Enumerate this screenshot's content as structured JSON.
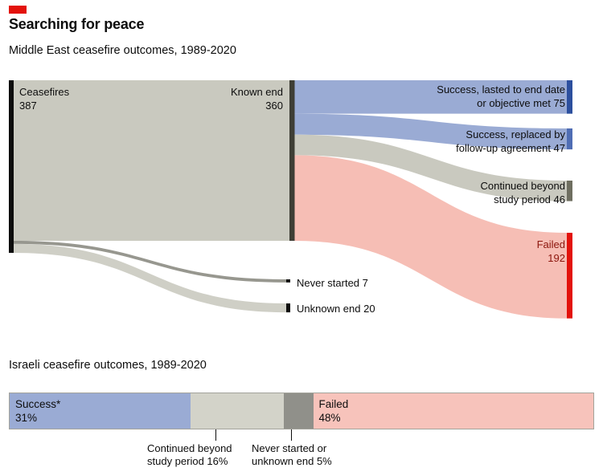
{
  "page": {
    "title": "Searching for peace",
    "subtitle": "Middle East ceasefire outcomes, 1989-2020",
    "subtitle2": "Israeli ceasefire outcomes, 1989-2020"
  },
  "colors": {
    "brand_red": "#e3120b",
    "blue_flow": "#9aabd4",
    "blue_dark": "#2c4f9e",
    "blue_mid": "#4f6db4",
    "grey_flow": "#c9c9bf",
    "olive_dark": "#6e6e60",
    "pink_flow": "#f6beb5",
    "failed_text": "#8c150c",
    "ink": "#0d0d0d"
  },
  "chart_data": [
    {
      "type": "sankey",
      "title": "Middle East ceasefire outcomes, 1989-2020",
      "total": 387,
      "nodes": [
        {
          "key": "ceasefires",
          "label": "Ceasefires\n387",
          "value": 387,
          "color": "#0d0d0d"
        },
        {
          "key": "known_end",
          "label": "Known end\n360",
          "value": 360,
          "color": "#3e3e35"
        },
        {
          "key": "never_started",
          "label": "Never started 7",
          "value": 7,
          "color": "#0d0d0d"
        },
        {
          "key": "unknown_end",
          "label": "Unknown end 20",
          "value": 20,
          "color": "#0d0d0d"
        },
        {
          "key": "success_lasted",
          "label": "Success, lasted to end date\nor objective met 75",
          "value": 75,
          "color": "#2c4f9e"
        },
        {
          "key": "success_replaced",
          "label": "Success, replaced by\nfollow-up agreement 47",
          "value": 47,
          "color": "#4f6db4"
        },
        {
          "key": "continued",
          "label": "Continued beyond\nstudy period 46",
          "value": 46,
          "color": "#6e6e60"
        },
        {
          "key": "failed",
          "label": "Failed\n192",
          "value": 192,
          "color": "#e3120b"
        }
      ],
      "flows": [
        {
          "from": "ceasefires",
          "to": "known_end",
          "value": 360,
          "color": "#c9c9bf"
        },
        {
          "from": "ceasefires",
          "to": "never_started",
          "value": 7,
          "color": "#97978f"
        },
        {
          "from": "ceasefires",
          "to": "unknown_end",
          "value": 20,
          "color": "#cfcfc6"
        },
        {
          "from": "known_end",
          "to": "success_lasted",
          "value": 75,
          "color": "#9aabd4"
        },
        {
          "from": "known_end",
          "to": "success_replaced",
          "value": 47,
          "color": "#9aabd4"
        },
        {
          "from": "known_end",
          "to": "continued",
          "value": 46,
          "color": "#c9c9bf"
        },
        {
          "from": "known_end",
          "to": "failed",
          "value": 192,
          "color": "#f6beb5"
        }
      ]
    },
    {
      "type": "bar",
      "title": "Israeli ceasefire outcomes, 1989-2020",
      "orientation": "horizontal-stacked",
      "unit": "%",
      "segments": [
        {
          "key": "success",
          "label": "Success*",
          "pct": 31,
          "color": "#9aabd4",
          "inline_label": "Success*\n31%"
        },
        {
          "key": "continued",
          "label": "Continued beyond study period",
          "pct": 16,
          "color": "#d3d3c9",
          "inline_label": ""
        },
        {
          "key": "never_unknown",
          "label": "Never started or unknown end",
          "pct": 5,
          "color": "#90908a",
          "inline_label": ""
        },
        {
          "key": "failed",
          "label": "Failed",
          "pct": 48,
          "color": "#f7c3bb",
          "inline_label": "Failed\n48%"
        }
      ],
      "callouts": [
        {
          "for": "continued",
          "text": "Continued beyond\nstudy period 16%"
        },
        {
          "for": "never_unknown",
          "text": "Never started or\nunknown end 5%"
        }
      ]
    }
  ]
}
